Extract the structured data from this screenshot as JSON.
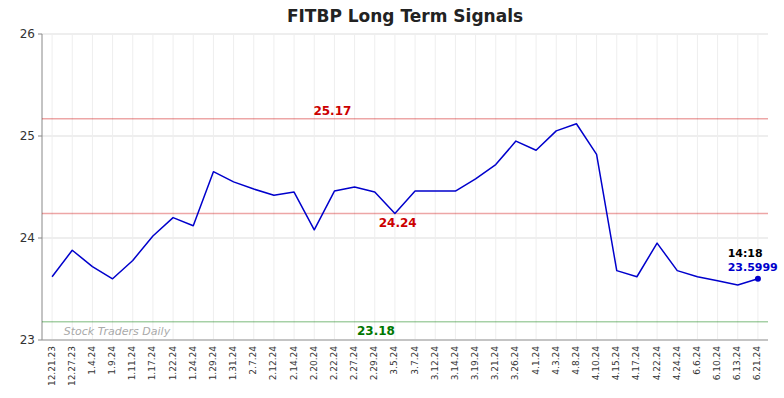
{
  "chart_data": {
    "type": "line",
    "title": "FITBP Long Term Signals",
    "categories": [
      "12.21.23",
      "12.27.23",
      "1.4.24",
      "1.9.24",
      "1.11.24",
      "1.17.24",
      "1.22.24",
      "1.24.24",
      "1.29.24",
      "1.31.24",
      "2.7.24",
      "2.12.24",
      "2.14.24",
      "2.20.24",
      "2.22.24",
      "2.27.24",
      "2.29.24",
      "3.5.24",
      "3.7.24",
      "3.12.24",
      "3.14.24",
      "3.19.24",
      "3.21.24",
      "3.26.24",
      "4.1.24",
      "4.3.24",
      "4.8.24",
      "4.10.24",
      "4.15.24",
      "4.17.24",
      "4.22.24",
      "4.24.24",
      "6.6.24",
      "6.10.24",
      "6.13.24",
      "6.21.24"
    ],
    "values": [
      23.62,
      23.88,
      23.72,
      23.6,
      23.78,
      24.02,
      24.2,
      24.12,
      24.65,
      24.55,
      24.48,
      24.42,
      24.45,
      24.08,
      24.46,
      24.5,
      24.45,
      24.24,
      24.46,
      24.46,
      24.46,
      24.58,
      24.72,
      24.95,
      24.86,
      25.05,
      25.12,
      24.82,
      23.68,
      23.62,
      23.95,
      23.68,
      23.62,
      23.58,
      23.54,
      23.6
    ],
    "color": "#0000cc",
    "ylim": [
      23,
      26
    ],
    "yticks": [
      23,
      24,
      25,
      26
    ],
    "grid": true,
    "hlines": [
      {
        "value": 25.17,
        "label": "25.17",
        "color": "#cc0000"
      },
      {
        "value": 24.24,
        "label": "24.24",
        "color": "#cc0000"
      },
      {
        "value": 23.18,
        "label": "23.18",
        "color": "#007700"
      }
    ],
    "annotations": [
      {
        "text": "14:18",
        "color": "#000000"
      },
      {
        "text": "23.5999",
        "color": "#0000cc"
      }
    ],
    "watermark": "Stock Traders Daily"
  }
}
